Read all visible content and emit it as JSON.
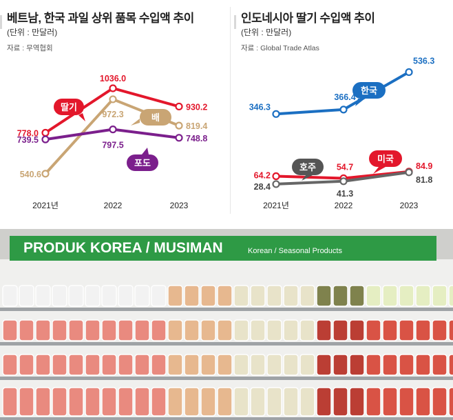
{
  "charts_text": {
    "left": {
      "title": "베트남, 한국 과일 상위 품목 수입액 추이",
      "unit": "(단위 : 만달러)",
      "source": "자료 : 무역협회"
    },
    "right": {
      "title": "인도네시아 딸기 수입액 추이",
      "unit": "(단위 : 만달러)",
      "source": "자료 : Global Trade Atlas"
    }
  },
  "chart_data": [
    {
      "type": "line",
      "title": "베트남, 한국 과일 상위 품목 수입액 추이",
      "unit": "(단위 : 만달러)",
      "x": [
        "2021년",
        "2022",
        "2023"
      ],
      "ylim": [
        500,
        1100
      ],
      "grid": false,
      "legend": "inline callouts",
      "series": [
        {
          "name": "딸기",
          "color": "#e3172b",
          "values": [
            778.0,
            1036.0,
            930.2
          ],
          "labels": [
            "778.0",
            "1036.0",
            "930.2"
          ]
        },
        {
          "name": "배",
          "color": "#c9a574",
          "values": [
            540.6,
            972.3,
            819.4
          ],
          "labels": [
            "540.6",
            "972.3",
            "819.4"
          ]
        },
        {
          "name": "포도",
          "color": "#7b1f8c",
          "values": [
            739.5,
            797.5,
            748.8
          ],
          "labels": [
            "739.5",
            "797.5",
            "748.8"
          ]
        }
      ]
    },
    {
      "type": "line",
      "title": "인도네시아 딸기 수입액 추이",
      "unit": "(단위 : 만달러)",
      "x": [
        "2021년",
        "2022",
        "2023"
      ],
      "ylim": [
        0,
        560
      ],
      "grid": false,
      "legend": "inline callouts",
      "series": [
        {
          "name": "한국",
          "color": "#1b6fc2",
          "values": [
            346.3,
            366.4,
            536.3
          ],
          "labels": [
            "346.3",
            "366.4",
            "536.3"
          ]
        },
        {
          "name": "미국",
          "color": "#e3172b",
          "values": [
            64.2,
            54.7,
            84.9
          ],
          "labels": [
            "64.2",
            "54.7",
            "84.9"
          ]
        },
        {
          "name": "호주",
          "color": "#666666",
          "values": [
            28.4,
            41.3,
            81.8
          ],
          "labels": [
            "28.4",
            "41.3",
            "81.8"
          ]
        }
      ]
    }
  ],
  "photo": {
    "banner_title": "PRODUK KOREA / MUSIMAN",
    "banner_subtitle": "Korean / Seasonal Products",
    "colors": {
      "banner": "#2e9a45",
      "shelf": "#f2f2f0",
      "apple": "#e9857a",
      "pear": "#e8e3c8"
    }
  }
}
